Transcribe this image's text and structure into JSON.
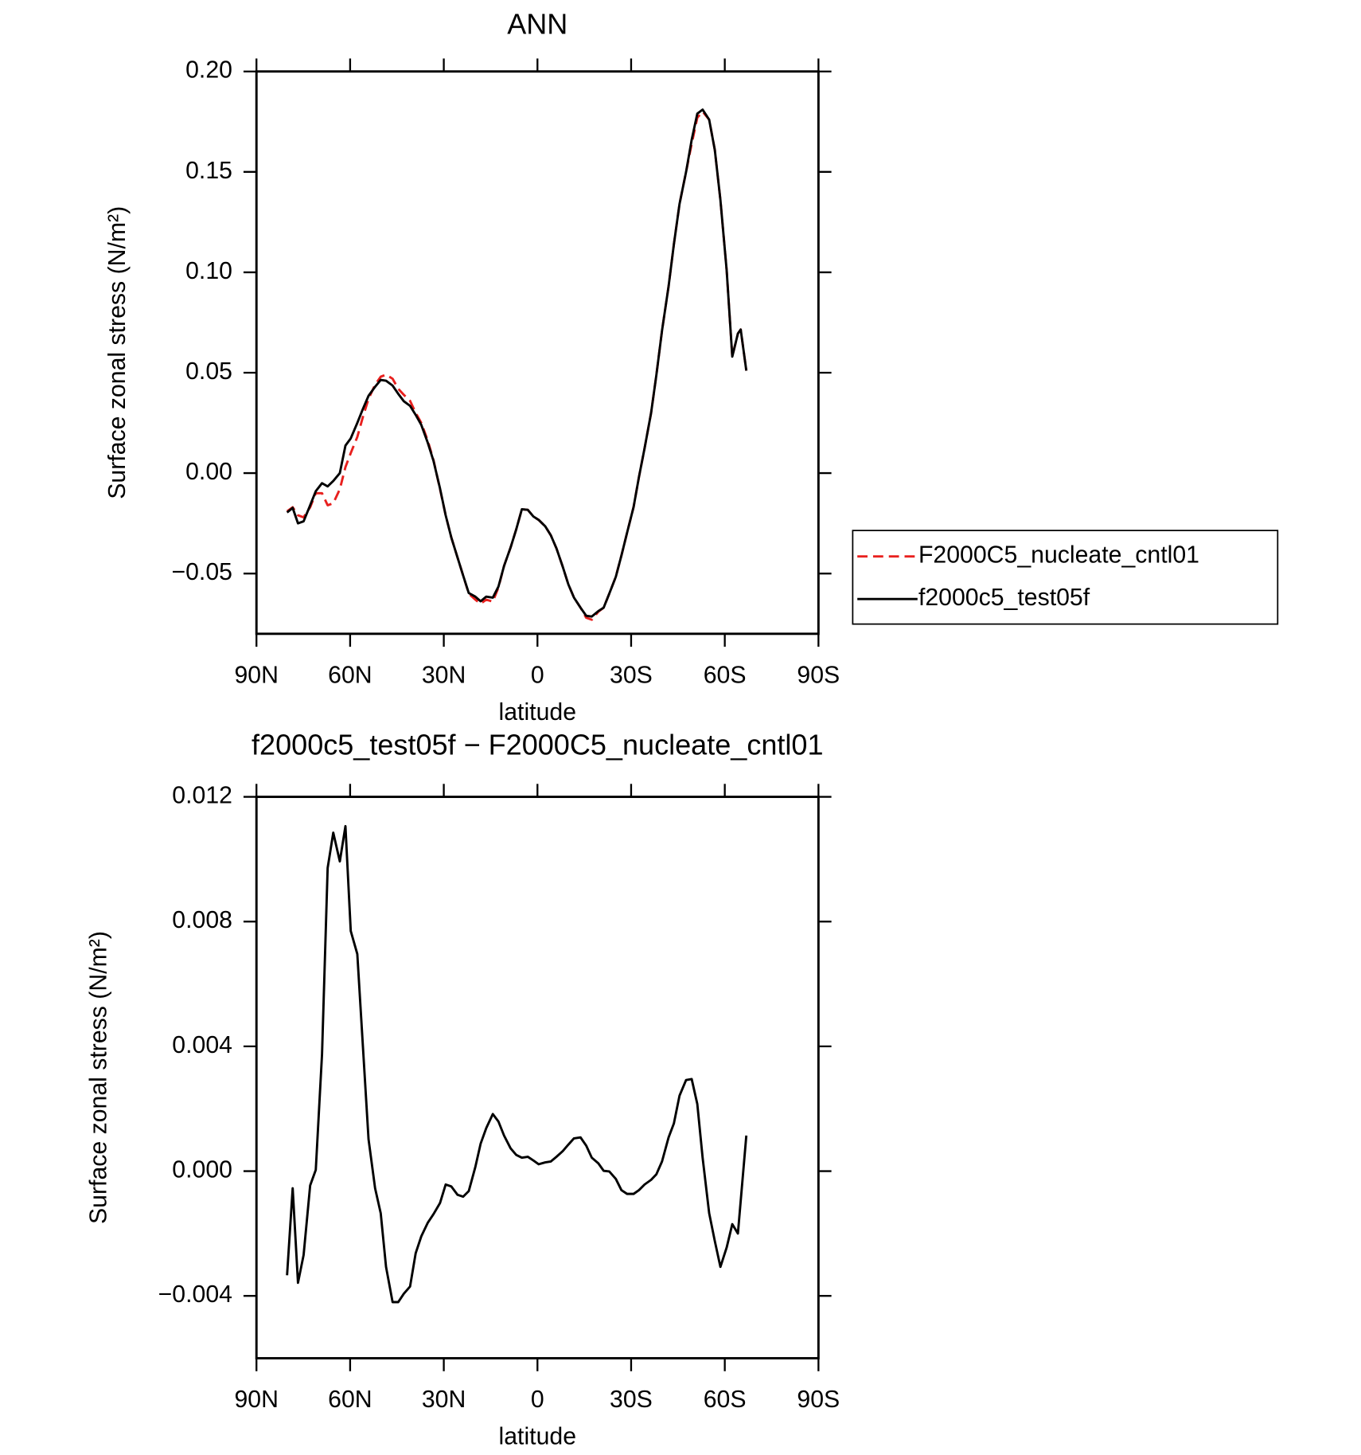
{
  "chart_data": [
    {
      "type": "line",
      "title": "ANN",
      "xlabel": "latitude",
      "ylabel": "Surface zonal stress (N/m²)",
      "xlim": [
        90,
        -90
      ],
      "xticks": [
        {
          "value": 90,
          "label": "90N"
        },
        {
          "value": 60,
          "label": "60N"
        },
        {
          "value": 30,
          "label": "30N"
        },
        0,
        {
          "value": -30,
          "label": "30S"
        },
        {
          "value": -60,
          "label": "60S"
        },
        {
          "value": -90,
          "label": "90S"
        }
      ],
      "ylim": [
        -0.08,
        0.2
      ],
      "yticks": [
        {
          "value": 0.2,
          "label": "0.20"
        },
        {
          "value": 0.15,
          "label": "0.15"
        },
        {
          "value": 0.1,
          "label": "0.10"
        },
        {
          "value": 0.05,
          "label": "0.05"
        },
        {
          "value": 0,
          "label": "0.00"
        },
        {
          "value": -0.05,
          "label": "−0.05"
        }
      ],
      "legend": "right",
      "x": [
        80.2,
        78.4,
        76.7,
        74.9,
        72.8,
        71.0,
        69.0,
        67.2,
        65.4,
        63.3,
        61.5,
        59.8,
        57.7,
        55.9,
        54.1,
        52.0,
        50.2,
        48.5,
        46.4,
        44.6,
        42.8,
        40.8,
        39.0,
        37.2,
        35.1,
        33.3,
        31.2,
        29.4,
        27.6,
        25.6,
        23.8,
        22.0,
        19.9,
        18.2,
        16.4,
        14.3,
        12.5,
        10.7,
        8.6,
        6.8,
        5.0,
        3.1,
        1.3,
        -0.4,
        -2.5,
        -4.3,
        -6.1,
        -8.1,
        -9.9,
        -11.7,
        -13.8,
        -15.6,
        -17.4,
        -19.5,
        -21.2,
        -23.0,
        -25.1,
        -26.9,
        -28.7,
        -30.8,
        -32.5,
        -34.3,
        -36.4,
        -38.1,
        -39.9,
        -42.0,
        -43.7,
        -45.5,
        -47.6,
        -49.4,
        -51.2,
        -52.9,
        -55.0,
        -56.8,
        -58.6,
        -60.6,
        -62.4,
        -64.2,
        -65.1,
        -66.9
      ],
      "series": [
        {
          "name": "F2000C5_nucleate_cntl01",
          "color": "#e8201e",
          "dash": true,
          "values": [
            -0.019,
            -0.017,
            -0.021,
            -0.022,
            -0.017,
            -0.01,
            -0.01,
            -0.016,
            -0.015,
            -0.008,
            0.003,
            0.01,
            0.018,
            0.028,
            0.037,
            0.044,
            0.048,
            0.049,
            0.047,
            0.042,
            0.039,
            0.036,
            0.03,
            0.025,
            0.016,
            0.0065,
            -0.008,
            -0.021,
            -0.032,
            -0.042,
            -0.051,
            -0.06,
            -0.063,
            -0.065,
            -0.063,
            -0.064,
            -0.057,
            -0.0462,
            -0.037,
            -0.028,
            -0.018,
            -0.0183,
            -0.0216,
            -0.0233,
            -0.0265,
            -0.031,
            -0.0375,
            -0.0466,
            -0.0554,
            -0.062,
            -0.067,
            -0.072,
            -0.073,
            -0.069,
            -0.067,
            -0.06,
            -0.0516,
            -0.041,
            -0.0297,
            -0.0168,
            -0.002,
            0.0123,
            0.03,
            0.049,
            0.071,
            0.093,
            0.114,
            0.134,
            0.15,
            0.164,
            0.177,
            0.18,
            0.176,
            0.161,
            0.136,
            0.101,
            0.058,
            0.0695,
            0.0715,
            0.051
          ]
        },
        {
          "name": "f2000c5_test05f",
          "color": "#000000",
          "dash": false,
          "values": [
            -0.0196,
            -0.0173,
            -0.025,
            -0.024,
            -0.016,
            -0.009,
            -0.005,
            -0.0066,
            -0.0039,
            0,
            0.0137,
            0.0173,
            0.025,
            0.032,
            0.0385,
            0.043,
            0.0464,
            0.046,
            0.0436,
            0.0395,
            0.0358,
            0.0335,
            0.029,
            0.024,
            0.015,
            0.0061,
            -0.0077,
            -0.021,
            -0.032,
            -0.042,
            -0.051,
            -0.0597,
            -0.0615,
            -0.0638,
            -0.0615,
            -0.062,
            -0.0565,
            -0.0462,
            -0.037,
            -0.028,
            -0.018,
            -0.0183,
            -0.0216,
            -0.0233,
            -0.0265,
            -0.031,
            -0.0375,
            -0.0466,
            -0.0554,
            -0.062,
            -0.067,
            -0.071,
            -0.0714,
            -0.0687,
            -0.067,
            -0.06,
            -0.0516,
            -0.041,
            -0.0297,
            -0.0168,
            -0.002,
            0.0123,
            0.03,
            0.049,
            0.071,
            0.093,
            0.114,
            0.134,
            0.15,
            0.166,
            0.179,
            0.181,
            0.176,
            0.161,
            0.136,
            0.101,
            0.058,
            0.0695,
            0.0715,
            0.051
          ]
        }
      ]
    },
    {
      "type": "line",
      "title": "f2000c5_test05f − F2000C5_nucleate_cntl01",
      "xlabel": "latitude",
      "ylabel": "Surface zonal stress (N/m²)",
      "xlim": [
        90,
        -90
      ],
      "xticks": [
        {
          "value": 90,
          "label": "90N"
        },
        {
          "value": 60,
          "label": "60N"
        },
        {
          "value": 30,
          "label": "30N"
        },
        0,
        {
          "value": -30,
          "label": "30S"
        },
        {
          "value": -60,
          "label": "60S"
        },
        {
          "value": -90,
          "label": "90S"
        }
      ],
      "ylim": [
        -0.006,
        0.012
      ],
      "yticks": [
        0.012,
        0.008,
        0.004,
        {
          "value": 0,
          "label": "0.000"
        },
        {
          "value": -0.004,
          "label": "−0.004"
        }
      ],
      "color": "#000000",
      "x": [
        80.2,
        78.4,
        76.7,
        74.9,
        72.8,
        71.0,
        69.0,
        67.2,
        65.4,
        63.3,
        61.5,
        59.8,
        57.7,
        55.9,
        54.1,
        52.0,
        50.2,
        48.5,
        46.4,
        44.6,
        42.8,
        40.8,
        39.0,
        37.2,
        35.1,
        33.3,
        31.2,
        29.4,
        27.6,
        25.6,
        23.8,
        22.0,
        19.9,
        18.2,
        16.4,
        14.3,
        12.5,
        10.7,
        8.6,
        6.8,
        5.0,
        3.1,
        1.3,
        -0.4,
        -2.5,
        -4.3,
        -6.1,
        -8.1,
        -9.9,
        -11.7,
        -13.8,
        -15.6,
        -17.4,
        -19.5,
        -21.2,
        -23.0,
        -25.1,
        -26.9,
        -28.7,
        -30.8,
        -32.5,
        -34.3,
        -36.4,
        -38.1,
        -39.9,
        -42.0,
        -43.7,
        -45.5,
        -47.6,
        -49.4,
        -51.2,
        -52.9,
        -55.0,
        -56.8,
        -58.6,
        -60.6,
        -62.4,
        -64.2,
        -66.9
      ],
      "values": [
        -0.00334,
        -0.00055,
        -0.00358,
        -0.00269,
        -0.00046,
        4e-05,
        0.00375,
        0.00972,
        0.01085,
        0.00993,
        0.01106,
        0.0077,
        0.00696,
        0.00399,
        0.00102,
        -0.00055,
        -0.00135,
        -0.00307,
        -0.0042,
        -0.0042,
        -0.00393,
        -0.0037,
        -0.00263,
        -0.00209,
        -0.00165,
        -0.00138,
        -0.00102,
        -0.00043,
        -0.00049,
        -0.00076,
        -0.00082,
        -0.00064,
        0.00013,
        0.00088,
        0.00138,
        0.00183,
        0.00159,
        0.00114,
        0.00073,
        0.00052,
        0.00043,
        0.00046,
        0.00034,
        0.00022,
        0.00028,
        0.00031,
        0.00046,
        0.00064,
        0.00085,
        0.00105,
        0.00108,
        0.00082,
        0.00043,
        0.00025,
        1e-05,
        -1e-05,
        -0.00025,
        -0.00061,
        -0.00073,
        -0.00073,
        -0.00061,
        -0.00043,
        -0.00028,
        -0.0001,
        0.00031,
        0.00108,
        0.00153,
        0.00242,
        0.00292,
        0.00295,
        0.00215,
        0.00043,
        -0.00135,
        -0.00224,
        -0.00307,
        -0.00245,
        -0.0017,
        -0.002,
        0.00114
      ]
    }
  ]
}
